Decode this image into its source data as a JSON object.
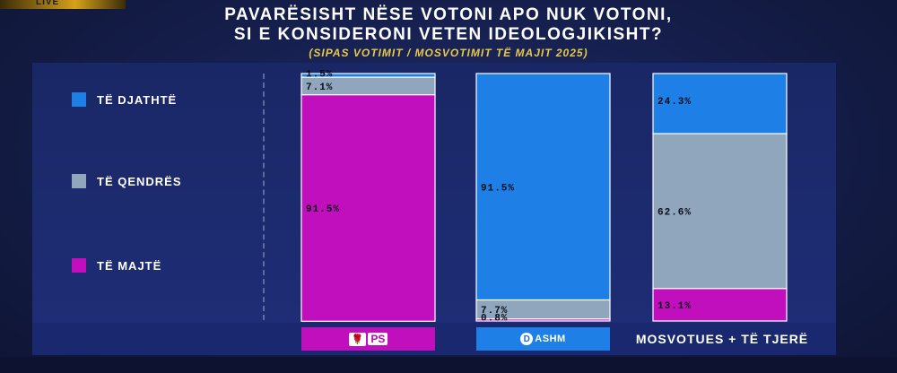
{
  "header": {
    "badge": "LIVE",
    "title_line1": "PAVARËSISHT NËSE VOTONI APO NUK VOTONI,",
    "title_line2": "SI E KONSIDERONI VETEN IDEOLOGJIKISHT?",
    "subtitle": "(SIPAS VOTIMIT / MOSVOTIMIT TË MAJIT 2025)"
  },
  "legend": [
    {
      "label": "TË DJATHTË",
      "color": "#1e7fe6"
    },
    {
      "label": "TË QENDRËS",
      "color": "#8fa6bd"
    },
    {
      "label": "TË MAJTË",
      "color": "#c20fbd"
    }
  ],
  "categories_footer": {
    "ps": {
      "logo_glyph": "🌹",
      "text": "PS",
      "color": "#c20fbd"
    },
    "pd": {
      "logo_glyph": "D",
      "text": "ASHM",
      "color": "#1e7fe6"
    },
    "other": {
      "text": "MOSVOTUES + TË TJERË"
    }
  },
  "chart_data": {
    "type": "bar",
    "stacked": true,
    "orientation": "vertical",
    "categories": [
      "PS",
      "PD-ASHM",
      "MOSVOTUES + TË TJERË"
    ],
    "series": [
      {
        "name": "TË DJATHTË",
        "color": "#1e7fe6",
        "values": [
          1.5,
          91.5,
          24.3
        ],
        "labels": [
          "1.5%",
          "91.5%",
          "24.3%"
        ]
      },
      {
        "name": "TË QENDRËS",
        "color": "#8fa6bd",
        "values": [
          7.1,
          7.7,
          62.6
        ],
        "labels": [
          "7.1%",
          "7.7%",
          "62.6%"
        ]
      },
      {
        "name": "TË MAJTË",
        "color": "#c20fbd",
        "values": [
          91.5,
          0.8,
          13.1
        ],
        "labels": [
          "91.5%",
          "0.8%",
          "13.1%"
        ]
      }
    ],
    "ylim": [
      0,
      100
    ],
    "grid": false,
    "legend_position": "left"
  }
}
